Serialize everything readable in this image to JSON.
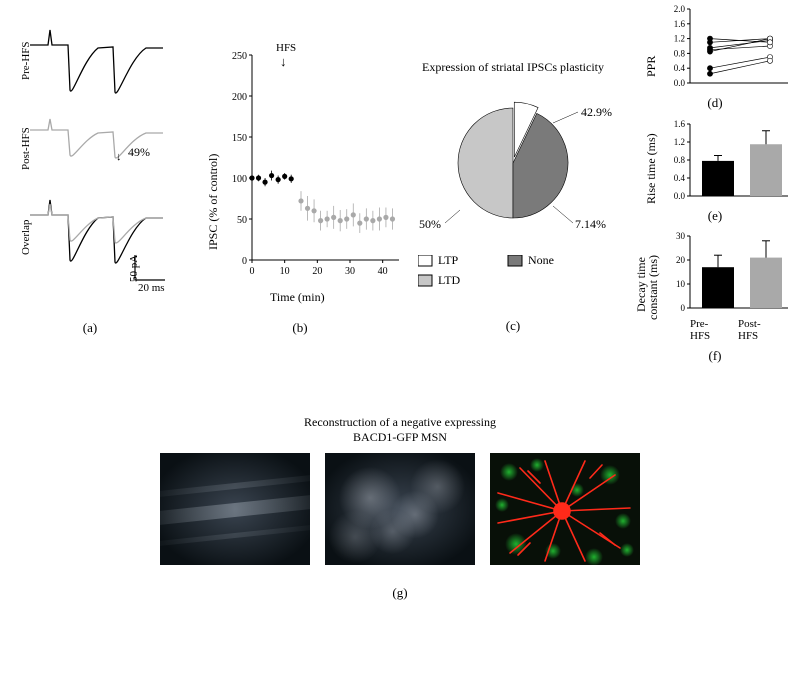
{
  "panel_a": {
    "labels": {
      "pre": "Pre-HFS",
      "post": "Post-HFS",
      "overlap": "Overlap"
    },
    "depression_pct": "49%",
    "scalebar": {
      "y": "50 pA",
      "x": "20 ms"
    },
    "trace_colors": {
      "pre": "#000000",
      "post": "#a9a9a9"
    },
    "sublabel": "(a)"
  },
  "panel_b": {
    "ylabel": "IPSC (% of control)",
    "xlabel": "Time (min)",
    "hfs_label": "HFS",
    "arrow_down": "↓",
    "ylim": [
      0,
      250
    ],
    "ytick_step": 50,
    "xlim": [
      0,
      45
    ],
    "xtick_step": 10,
    "series": {
      "pre": {
        "color": "#000000",
        "x": [
          0,
          2,
          4,
          6,
          8,
          10,
          12
        ],
        "y": [
          100,
          100,
          95,
          103,
          98,
          102,
          99
        ],
        "err": [
          5,
          4,
          5,
          6,
          5,
          4,
          5
        ]
      },
      "post": {
        "color": "#a9a9a9",
        "x": [
          15,
          17,
          19,
          21,
          23,
          25,
          27,
          29,
          31,
          33,
          35,
          37,
          39,
          41,
          43
        ],
        "y": [
          72,
          63,
          60,
          48,
          50,
          52,
          48,
          50,
          55,
          45,
          50,
          48,
          50,
          52,
          50
        ],
        "err": [
          12,
          15,
          14,
          12,
          10,
          14,
          13,
          12,
          14,
          12,
          13,
          12,
          14,
          12,
          13
        ]
      }
    },
    "sublabel": "(b)"
  },
  "panel_c": {
    "title": "Expression of striatal IPSCs plasticity",
    "slices": [
      {
        "name": "LTD",
        "value": 50,
        "label": "50%",
        "color": "#c7c7c7"
      },
      {
        "name": "LTP",
        "value": 7.14,
        "label": "7.14%",
        "color": "#ffffff"
      },
      {
        "name": "None",
        "value": 42.9,
        "label": "42.9%",
        "color": "#7a7a7a"
      }
    ],
    "legend": {
      "ltp": "LTP",
      "ltd": "LTD",
      "none": "None"
    },
    "sublabel": "(c)"
  },
  "panel_d": {
    "ylabel": "PPR",
    "ylim": [
      0,
      2.0
    ],
    "ytick_step": 0.4,
    "pairs": [
      [
        0.85,
        1.2
      ],
      [
        0.95,
        1.15
      ],
      [
        1.1,
        1.2
      ],
      [
        0.9,
        1.0
      ],
      [
        0.4,
        0.7
      ],
      [
        0.25,
        0.6
      ],
      [
        1.2,
        1.1
      ]
    ],
    "colors": {
      "pre_marker": "#000000",
      "post_marker": "#ffffff",
      "line": "#000000"
    },
    "sublabel": "(d)"
  },
  "panel_e": {
    "ylabel": "Rise time (ms)",
    "ylim": [
      0,
      1.6
    ],
    "ytick_step": 0.4,
    "bars": [
      {
        "name": "Pre-HFS",
        "value": 0.78,
        "err": 0.12,
        "color": "#000000"
      },
      {
        "name": "Post-HFS",
        "value": 1.15,
        "err": 0.3,
        "color": "#a9a9a9"
      }
    ],
    "sublabel": "(e)"
  },
  "panel_f": {
    "ylabel": "Decay time\nconstant (ms)",
    "ylabel_line1": "Decay time",
    "ylabel_line2": "constant (ms)",
    "ylim": [
      0,
      30
    ],
    "ytick_step": 10,
    "bars": [
      {
        "name": "Pre-HFS",
        "value": 17,
        "err": 5,
        "color": "#000000",
        "xlabel": "Pre-\nHFS"
      },
      {
        "name": "Post-HFS",
        "value": 21,
        "err": 7,
        "color": "#a9a9a9",
        "xlabel": "Post-\nHFS"
      }
    ],
    "xlabels": {
      "pre_l1": "Pre-",
      "pre_l2": "HFS",
      "post_l1": "Post-",
      "post_l2": "HFS"
    },
    "sublabel": "(f)"
  },
  "panel_g": {
    "title_line1": "Reconstruction of a negative expressing",
    "title_line2": "BACD1-GFP MSN",
    "sublabel": "(g)"
  }
}
